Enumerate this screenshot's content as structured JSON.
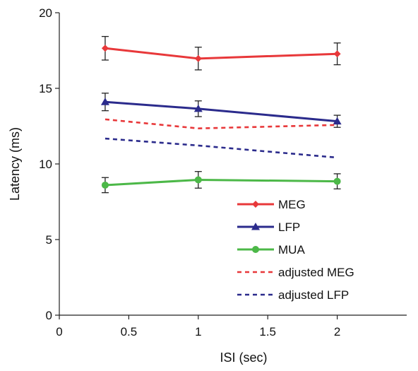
{
  "chart_data": {
    "type": "line",
    "title": "",
    "xlabel": "ISI (sec)",
    "ylabel": "Latency (ms)",
    "xlim": [
      0,
      2.5
    ],
    "ylim": [
      0,
      20
    ],
    "x_ticks": [
      0,
      0.5,
      1,
      1.5,
      2
    ],
    "x_tick_labels": [
      "0",
      "0.5",
      "1",
      "1.5",
      "2"
    ],
    "y_ticks": [
      0,
      5,
      10,
      15,
      20
    ],
    "y_tick_labels": [
      "0",
      "5",
      "10",
      "15",
      "20"
    ],
    "grid": false,
    "legend_position": "lower-right",
    "x": [
      0.33,
      1,
      2
    ],
    "series": [
      {
        "name": "MEG",
        "values": [
          17.65,
          16.97,
          17.28
        ],
        "errors": [
          0.78,
          0.75,
          0.72
        ],
        "color": "#e8383a",
        "marker": "diamond",
        "style": "solid"
      },
      {
        "name": "LFP",
        "values": [
          14.1,
          13.65,
          12.82
        ],
        "errors": [
          0.58,
          0.52,
          0.4
        ],
        "color": "#2b2b8c",
        "marker": "triangle",
        "style": "solid"
      },
      {
        "name": "MUA",
        "values": [
          8.6,
          8.95,
          8.85
        ],
        "errors": [
          0.5,
          0.55,
          0.5
        ],
        "color": "#4cb848",
        "marker": "circle",
        "style": "solid"
      },
      {
        "name": "adjusted MEG",
        "values": [
          12.95,
          12.35,
          12.58
        ],
        "color": "#e8383a",
        "marker": "none",
        "style": "dashed"
      },
      {
        "name": "adjusted LFP",
        "values": [
          11.68,
          11.22,
          10.42
        ],
        "color": "#2b2b8c",
        "marker": "none",
        "style": "dashed"
      }
    ]
  }
}
